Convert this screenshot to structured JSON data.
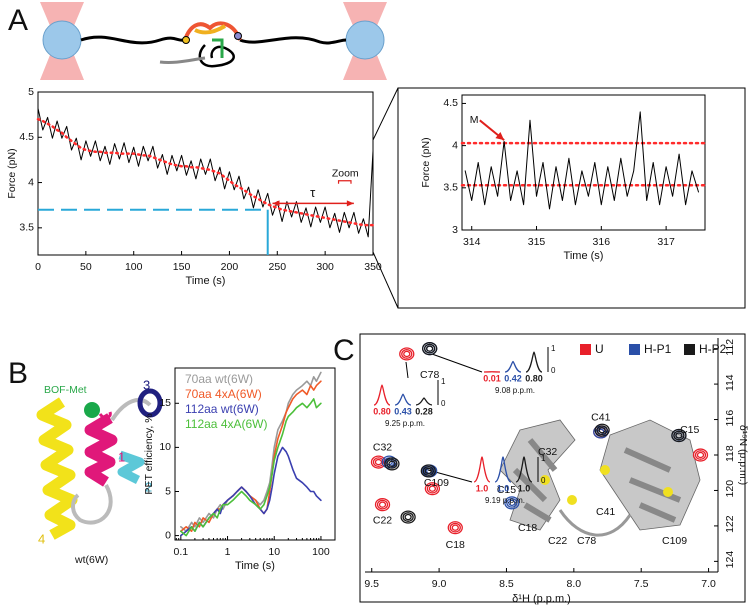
{
  "panel_labels": [
    "A",
    "B",
    "C"
  ],
  "protein_labels": {
    "probe": "BOF-Met",
    "helices": [
      "1",
      "2",
      "3",
      "4"
    ],
    "name": "wt(6W)"
  },
  "structure_labels": [
    "C32",
    "C18",
    "C22",
    "C78",
    "C41",
    "C109"
  ],
  "nmr_slices": [
    {
      "labels": [
        "0.80",
        "0.43",
        "0.28"
      ],
      "position": "9.25 p.p.m."
    },
    {
      "labels": [
        "0.01",
        "0.42",
        "0.80"
      ],
      "position": "9.08 p.p.m."
    },
    {
      "labels": [
        "1.0",
        "1.0",
        "1.0"
      ],
      "position": "9.19 p.p.m."
    }
  ],
  "slice_scale": [
    "1",
    "0"
  ],
  "chart_data": [
    {
      "type": "line",
      "x_label": "Time (s)",
      "y_label": "Force (pN)",
      "xlim": [
        0,
        350
      ],
      "ylim": [
        3.2,
        5
      ],
      "xticks": [
        0,
        50,
        100,
        150,
        200,
        250,
        300,
        350
      ],
      "yticks": [
        3.5,
        4,
        4.5,
        5
      ],
      "x": [
        0,
        5,
        10,
        15,
        20,
        25,
        30,
        35,
        40,
        45,
        50,
        55,
        60,
        65,
        70,
        75,
        80,
        85,
        90,
        95,
        100,
        105,
        110,
        115,
        120,
        125,
        130,
        135,
        140,
        145,
        150,
        155,
        160,
        165,
        170,
        175,
        180,
        185,
        190,
        195,
        200,
        205,
        210,
        215,
        220,
        225,
        230,
        235,
        240,
        245,
        250,
        255,
        260,
        265,
        270,
        275,
        280,
        285,
        290,
        295,
        300,
        305,
        310,
        315,
        320,
        325,
        330,
        335,
        340,
        345,
        350
      ],
      "series": [
        {
          "color": "#000000",
          "values": [
            4.82,
            4.58,
            4.72,
            4.49,
            4.68,
            4.49,
            4.62,
            4.36,
            4.49,
            4.25,
            4.46,
            4.29,
            4.46,
            4.24,
            4.4,
            4.2,
            4.43,
            4.26,
            4.44,
            4.22,
            4.39,
            4.18,
            4.4,
            4.24,
            4.4,
            4.16,
            4.31,
            4.09,
            4.3,
            4.13,
            4.3,
            4.08,
            4.24,
            4.04,
            4.26,
            4.09,
            4.26,
            4.02,
            4.17,
            3.93,
            4.12,
            3.92,
            4.07,
            3.82,
            3.95,
            3.72,
            3.92,
            3.73,
            3.88,
            3.64,
            3.79,
            3.57,
            3.79,
            3.62,
            3.79,
            3.56,
            3.72,
            3.51,
            3.73,
            3.56,
            3.73,
            3.5,
            3.66,
            3.45,
            3.67,
            3.5,
            3.67,
            3.44,
            3.6,
            3.4,
            4.35
          ]
        },
        {
          "color": "#ff2a2a",
          "style": "dotted",
          "values": [
            4.7,
            4.68,
            4.65,
            4.62,
            4.58,
            4.55,
            4.5,
            4.46,
            4.42,
            4.38,
            4.36,
            4.35,
            4.34,
            4.34,
            4.33,
            4.33,
            4.33,
            4.32,
            4.32,
            4.32,
            4.32,
            4.31,
            4.3,
            4.3,
            4.28,
            4.26,
            4.24,
            4.22,
            4.2,
            4.19,
            4.18,
            4.18,
            4.17,
            4.17,
            4.16,
            4.15,
            4.14,
            4.12,
            4.1,
            4.06,
            4.02,
            3.98,
            3.95,
            3.92,
            3.88,
            3.85,
            3.82,
            3.79,
            3.76,
            3.74,
            3.72,
            3.7,
            3.69,
            3.68,
            3.67,
            3.66,
            3.65,
            3.64,
            3.63,
            3.62,
            3.61,
            3.6,
            3.59,
            3.58,
            3.57,
            3.56,
            3.55,
            3.54,
            3.53,
            3.53,
            3.53
          ]
        }
      ],
      "threshold": {
        "x": 240,
        "y": 3.7,
        "color": "#29a8d8"
      },
      "tau_arrow": {
        "x": [
          245,
          330
        ],
        "y": 3.77,
        "color": "#e0201c"
      },
      "zoom_range": {
        "x": [
          314,
          327
        ],
        "y": 4.02,
        "color": "#e0201c"
      },
      "annotations": [
        {
          "text": "τ",
          "x": 287,
          "y": 3.88
        },
        {
          "text": "Zoom",
          "x": 321,
          "y": 4.1
        }
      ]
    },
    {
      "type": "line",
      "x_label": "Time (s)",
      "y_label": "Force (pN)",
      "xlim": [
        313.85,
        317.6
      ],
      "ylim": [
        3,
        4.6
      ],
      "xticks": [
        314,
        315,
        316,
        317
      ],
      "yticks": [
        3,
        3.5,
        4,
        4.5
      ],
      "x": [
        313.9,
        314.0,
        314.1,
        314.2,
        314.3,
        314.4,
        314.5,
        314.6,
        314.7,
        314.8,
        314.9,
        315.0,
        315.1,
        315.2,
        315.3,
        315.4,
        315.5,
        315.6,
        315.7,
        315.8,
        315.9,
        316.0,
        316.1,
        316.2,
        316.3,
        316.4,
        316.5,
        316.6,
        316.7,
        316.8,
        316.9,
        317.0,
        317.1,
        317.2,
        317.3,
        317.4,
        317.5
      ],
      "series": [
        {
          "color": "#000000",
          "values": [
            3.7,
            3.35,
            3.8,
            3.3,
            3.75,
            3.4,
            4.05,
            3.35,
            3.7,
            3.3,
            4.3,
            3.4,
            3.8,
            3.25,
            3.75,
            3.35,
            3.85,
            3.3,
            3.7,
            3.4,
            3.8,
            3.3,
            3.75,
            3.35,
            3.85,
            3.4,
            3.7,
            4.4,
            3.35,
            3.8,
            3.3,
            3.75,
            3.4,
            3.9,
            3.3,
            3.7,
            3.45
          ]
        }
      ],
      "levels": {
        "values": [
          4.03,
          3.53
        ],
        "color": "#ff2a2a"
      },
      "annotations": [
        {
          "text": "M",
          "x": 313.97,
          "y": 4.3,
          "target_x": 314.5,
          "color": "#e0201c"
        }
      ]
    },
    {
      "type": "line",
      "x_label": "Time (s)",
      "y_label": "PET efficiency, %",
      "xscale": "log",
      "xlim": [
        0.075,
        200
      ],
      "ylim": [
        -0.5,
        19
      ],
      "xticks": [
        0.1,
        1,
        10,
        100
      ],
      "yticks": [
        0,
        5,
        10,
        15
      ],
      "legend": "top-left",
      "x": [
        0.1,
        0.13,
        0.17,
        0.2,
        0.25,
        0.3,
        0.4,
        0.5,
        0.6,
        0.7,
        0.8,
        1,
        1.3,
        1.6,
        2,
        2.5,
        3,
        4,
        5,
        6,
        7,
        8,
        9,
        10,
        12,
        15,
        18,
        20,
        25,
        30,
        40,
        50,
        60,
        70,
        80,
        100
      ],
      "series": [
        {
          "name": "70aa wt(6W)",
          "color": "#9a9a9a",
          "values": [
            1,
            0.5,
            1.5,
            1,
            2,
            1.5,
            2.5,
            2,
            3,
            3.5,
            3,
            4,
            4.5,
            5,
            5.5,
            5,
            4.5,
            4,
            3.5,
            4,
            5,
            6,
            8,
            10,
            12,
            13,
            14,
            15,
            16,
            16.5,
            17,
            17.5,
            17,
            18,
            17.5,
            18.5
          ]
        },
        {
          "name": "70aa 4xA(6W)",
          "color": "#f05a28",
          "values": [
            0.5,
            1,
            0.5,
            1.5,
            1,
            2,
            1.5,
            2.5,
            3,
            3,
            3.5,
            4,
            4.5,
            5,
            5.5,
            5,
            4.5,
            4,
            3,
            2.5,
            3,
            5,
            7,
            9,
            11,
            12.5,
            14,
            14.5,
            15.5,
            16,
            16.5,
            16,
            17,
            16.5,
            17,
            17.5
          ]
        },
        {
          "name": "112aa wt(6W)",
          "color": "#3a3fb0",
          "values": [
            0,
            0.5,
            1,
            0.5,
            1.5,
            1,
            2,
            2.5,
            3,
            2.5,
            3.5,
            4,
            4.5,
            5,
            5.5,
            5,
            4.5,
            3.5,
            3,
            2.5,
            3,
            4,
            5.5,
            7,
            9,
            10,
            9.5,
            9,
            7.5,
            6.5,
            6,
            5.5,
            5,
            5,
            4.5,
            4
          ]
        },
        {
          "name": "112aa 4xA(6W)",
          "color": "#4cbf3a",
          "values": [
            0.5,
            0,
            1,
            0.5,
            1.5,
            1,
            2,
            2.5,
            2,
            3,
            3.5,
            3.5,
            4,
            4.5,
            5,
            4.5,
            4,
            3.5,
            3,
            3.5,
            4.5,
            5.5,
            7,
            8.5,
            10,
            11.5,
            13,
            13.5,
            14,
            14.5,
            15,
            14.5,
            15,
            15.5,
            14.5,
            15
          ]
        }
      ]
    },
    {
      "type": "scatter",
      "x_label": "δ¹H (p.p.m.)",
      "y_label": "δ¹⁵N (p.p.m.)",
      "y_axis_side": "right",
      "legend": "top-right",
      "xlim": [
        9.55,
        6.93
      ],
      "ylim": [
        111.4,
        124.6
      ],
      "xticks": [
        9.5,
        {
          "value": 9,
          "label": "9.0"
        },
        8.5,
        {
          "value": 8,
          "label": "8.0"
        },
        7.5,
        {
          "value": 7,
          "label": "7.0"
        }
      ],
      "yticks": [
        112,
        114,
        116,
        118,
        120,
        122,
        124
      ],
      "series": [
        {
          "name": "U",
          "color": "#e8202a",
          "x": [
            9.24,
            7.8,
            7.06,
            9.45,
            9.05,
            9.42,
            8.88
          ],
          "values": [
            112.3,
            116.7,
            118.0,
            118.4,
            119.9,
            120.8,
            122.1
          ]
        },
        {
          "name": "H-P1",
          "color": "#2a4fa8",
          "x": [
            9.07,
            7.8,
            7.22,
            9.37,
            9.07,
            8.46
          ],
          "values": [
            112.0,
            116.7,
            116.9,
            118.4,
            118.9,
            120.7
          ]
        },
        {
          "name": "H-P2",
          "color": "#1a1a1a",
          "x": [
            9.07,
            7.79,
            7.22,
            9.35,
            9.08,
            9.23
          ],
          "values": [
            112.0,
            116.6,
            116.9,
            118.5,
            118.9,
            121.5
          ]
        }
      ],
      "annotations": [
        {
          "text": "C78",
          "x": 9.07,
          "y": 113.5
        },
        {
          "text": "C41",
          "x": 7.8,
          "y": 115.9
        },
        {
          "text": "C15",
          "x": 7.14,
          "y": 116.6
        },
        {
          "text": "C32",
          "x": 9.42,
          "y": 117.6
        },
        {
          "text": "C109",
          "x": 9.02,
          "y": 119.6
        },
        {
          "text": "C15",
          "x": 8.5,
          "y": 120.0
        },
        {
          "text": "C22",
          "x": 9.42,
          "y": 121.7
        },
        {
          "text": "C18",
          "x": 8.88,
          "y": 123.1
        }
      ]
    }
  ]
}
